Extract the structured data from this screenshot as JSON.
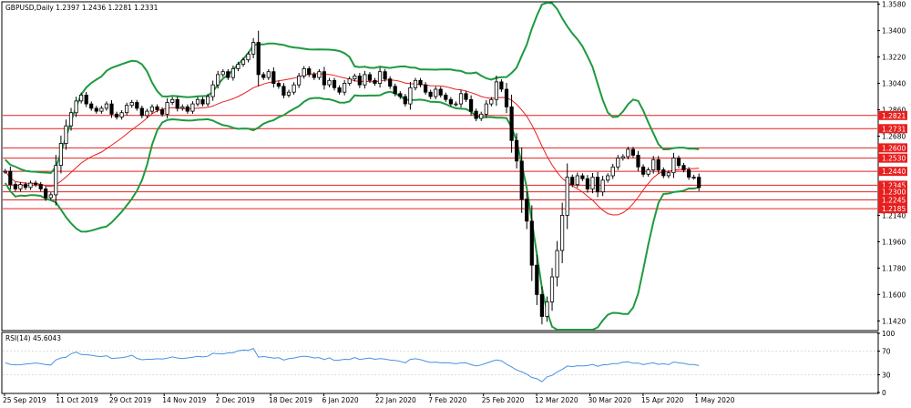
{
  "chart_data": [
    {
      "type": "candlestick",
      "title": "GBPUSD,Daily  1.2397 1.2436 1.2281 1.2331",
      "ylim": [
        1.136,
        1.359
      ],
      "y_ticks": [
        "1.3580",
        "1.3400",
        "1.3220",
        "1.3040",
        "1.2860",
        "1.2680",
        "1.2140",
        "1.1960",
        "1.1780",
        "1.1600",
        "1.1420"
      ],
      "x_ticks": [
        "25 Sep 2019",
        "11 Oct 2019",
        "29 Oct 2019",
        "14 Nov 2019",
        "2 Dec 2019",
        "18 Dec 2019",
        "6 Jan 2020",
        "22 Jan 2020",
        "7 Feb 2020",
        "25 Feb 2020",
        "12 Mar 2020",
        "30 Mar 2020",
        "15 Apr 2020",
        "1 May 2020"
      ],
      "horizontal_levels": [
        "1.2821",
        "1.2731",
        "1.2600",
        "1.2530",
        "1.2440",
        "1.2345",
        "1.2300",
        "1.2245",
        "1.2185"
      ],
      "close_series": [
        1.244,
        1.235,
        1.232,
        1.235,
        1.233,
        1.236,
        1.235,
        1.232,
        1.226,
        1.228,
        1.248,
        1.263,
        1.275,
        1.284,
        1.292,
        1.296,
        1.29,
        1.287,
        1.285,
        1.287,
        1.29,
        1.283,
        1.281,
        1.284,
        1.289,
        1.291,
        1.287,
        1.282,
        1.285,
        1.288,
        1.286,
        1.283,
        1.291,
        1.293,
        1.287,
        1.288,
        1.285,
        1.29,
        1.293,
        1.29,
        1.295,
        1.303,
        1.31,
        1.312,
        1.308,
        1.314,
        1.317,
        1.32,
        1.324,
        1.332,
        1.31,
        1.308,
        1.312,
        1.304,
        1.302,
        1.296,
        1.298,
        1.303,
        1.309,
        1.314,
        1.31,
        1.308,
        1.312,
        1.303,
        1.306,
        1.301,
        1.298,
        1.304,
        1.307,
        1.309,
        1.303,
        1.31,
        1.306,
        1.304,
        1.312,
        1.307,
        1.302,
        1.297,
        1.295,
        1.29,
        1.301,
        1.306,
        1.303,
        1.298,
        1.295,
        1.3,
        1.296,
        1.293,
        1.29,
        1.29,
        1.297,
        1.293,
        1.285,
        1.28,
        1.283,
        1.29,
        1.293,
        1.305,
        1.3,
        1.288,
        1.265,
        1.251,
        1.225,
        1.21,
        1.18,
        1.16,
        1.145,
        1.155,
        1.172,
        1.19,
        1.214,
        1.24,
        1.235,
        1.241,
        1.239,
        1.232,
        1.24,
        1.23,
        1.238,
        1.241,
        1.247,
        1.253,
        1.254,
        1.259,
        1.255,
        1.247,
        1.242,
        1.245,
        1.252,
        1.245,
        1.241,
        1.243,
        1.253,
        1.248,
        1.245,
        1.24,
        1.24,
        1.233
      ],
      "rsi": {
        "label": "RSI(14) 45.6043",
        "ylim": [
          0,
          100
        ],
        "y_ticks": [
          "100",
          "70",
          "30",
          "0"
        ],
        "values": [
          50.1,
          47.6,
          46.8,
          46.9,
          48.2,
          48.7,
          49.9,
          48.9,
          47.1,
          46.5,
          55.1,
          58.4,
          59.6,
          65.6,
          68.2,
          64.1,
          63.9,
          62.9,
          61.4,
          60.8,
          62.2,
          57.5,
          58.1,
          58.8,
          60.3,
          62.9,
          57.7,
          55.4,
          56.1,
          56.1,
          57.0,
          56.4,
          58.0,
          60.1,
          58.3,
          57.2,
          58.4,
          59.6,
          61.1,
          60.2,
          61.3,
          66.3,
          65.6,
          65.2,
          66.9,
          67.0,
          70.5,
          71.7,
          71.3,
          74.4,
          59.9,
          60.8,
          59.7,
          58.2,
          58.8,
          54.9,
          57.2,
          58.3,
          60.2,
          61.4,
          60.3,
          58.5,
          59.0,
          55.7,
          58.6,
          54.1,
          54.7,
          56.2,
          55.8,
          59.3,
          55.8,
          57.0,
          58.3,
          56.1,
          57.4,
          56.5,
          54.7,
          54.3,
          52.6,
          50.2,
          56.0,
          57.0,
          55.5,
          53.0,
          50.7,
          51.4,
          50.2,
          50.3,
          49.9,
          48.6,
          50.0,
          50.0,
          47.1,
          44.7,
          46.6,
          49.4,
          52.5,
          54.9,
          53.6,
          47.8,
          43.2,
          38.1,
          34.7,
          31.1,
          25.4,
          23.2,
          18.3,
          26.5,
          28.9,
          34.7,
          39.1,
          44.8,
          43.7,
          45.3,
          44.7,
          45.5,
          47.5,
          44.3,
          46.8,
          47.1,
          48.8,
          48.8,
          51.4,
          51.8,
          49.6,
          49.7,
          47.1,
          48.8,
          50.2,
          47.5,
          48.6,
          47.1,
          51.5,
          50.1,
          49.2,
          47.4,
          47.3,
          45.6
        ]
      }
    }
  ],
  "colors": {
    "bull": "#000000",
    "bear": "#000000",
    "ma": "#e81f1f",
    "bands": "#1e9a3f",
    "level": "#e81f1f",
    "rsi": "#4a90e2"
  }
}
